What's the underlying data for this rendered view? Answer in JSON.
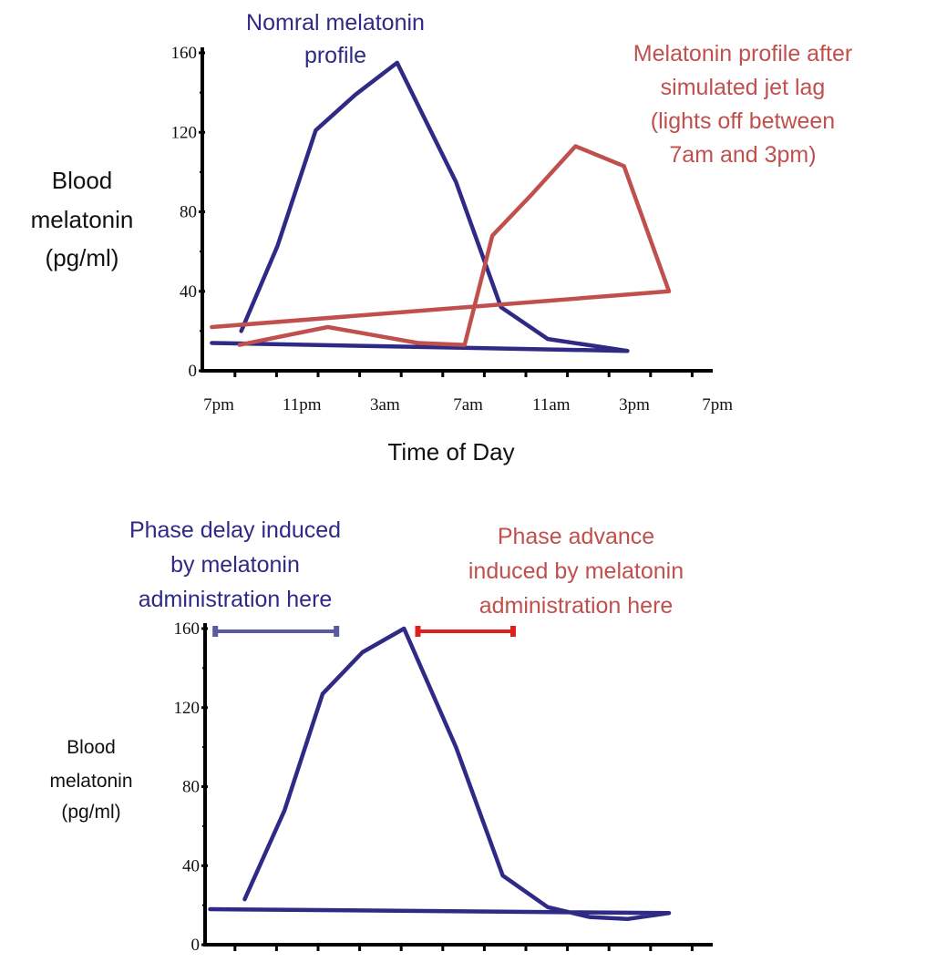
{
  "colors": {
    "normal": "#2e2a85",
    "jetlag": "#c0504d",
    "delay_bar": "#5a5aa0",
    "advance_bar": "#e02020",
    "axis": "#000000"
  },
  "chart_data": [
    {
      "type": "line",
      "title": "",
      "xlabel": "Time of Day",
      "ylabel": [
        "Blood",
        "melatonin",
        "(pg/ml)"
      ],
      "ylim": [
        0,
        160
      ],
      "yticks": [
        "0",
        "40",
        "80",
        "120",
        "160"
      ],
      "xticks": [
        "7pm",
        "11pm",
        "3am",
        "7am",
        "11am",
        "3pm",
        "7pm"
      ],
      "grid": false,
      "series": [
        {
          "name": "Nomral melatonin profile",
          "label_lines": [
            "Nomral melatonin",
            "profile"
          ],
          "color": "#2e2a85",
          "x": [
            "20:05",
            "21:50",
            "23:40",
            "01:35",
            "03:35",
            "06:25",
            "08:35",
            "10:50",
            "14:40",
            "18:40"
          ],
          "y": [
            20,
            63,
            121,
            139,
            155,
            95,
            32,
            16,
            10,
            14
          ]
        },
        {
          "name": "Melatonin profile after simulated jet lag (lights off between 7am and 3pm)",
          "label_lines": [
            "Melatonin profile after",
            "simulated jet lag",
            "(lights off between",
            "7am and 3pm)"
          ],
          "color": "#c0504d",
          "x": [
            "20:00",
            "00:15",
            "04:35",
            "06:50",
            "08:10",
            "10:05",
            "12:10",
            "14:30",
            "16:40",
            "18:40"
          ],
          "y": [
            13,
            22,
            14,
            13,
            68,
            89,
            113,
            103,
            40,
            22
          ]
        }
      ]
    },
    {
      "type": "line",
      "title": "",
      "ylabel": [
        "Blood",
        "melatonin",
        "(pg/ml)"
      ],
      "ylim": [
        0,
        160
      ],
      "yticks": [
        "0",
        "40",
        "80",
        "120",
        "160"
      ],
      "grid": false,
      "series": [
        {
          "color": "#2e2a85",
          "x": [
            "20:15",
            "22:10",
            "00:00",
            "01:55",
            "03:55",
            "06:25",
            "08:40",
            "10:50",
            "12:50",
            "14:40",
            "16:40",
            "18:35"
          ],
          "y": [
            23,
            68,
            127,
            148,
            160,
            100,
            35,
            19,
            14,
            13,
            16,
            18
          ]
        }
      ],
      "annotations": [
        {
          "label_lines": [
            "Phase delay induced",
            "by melatonin",
            "administration here"
          ],
          "color": "#2e2a85",
          "bar_color": "#5a5aa0",
          "from": "18:50",
          "to": "00:40"
        },
        {
          "label_lines": [
            "Phase advance",
            "induced by melatonin",
            "administration here"
          ],
          "color": "#c0504d",
          "bar_color": "#e02020",
          "from": "04:35",
          "to": "09:10"
        }
      ]
    }
  ]
}
